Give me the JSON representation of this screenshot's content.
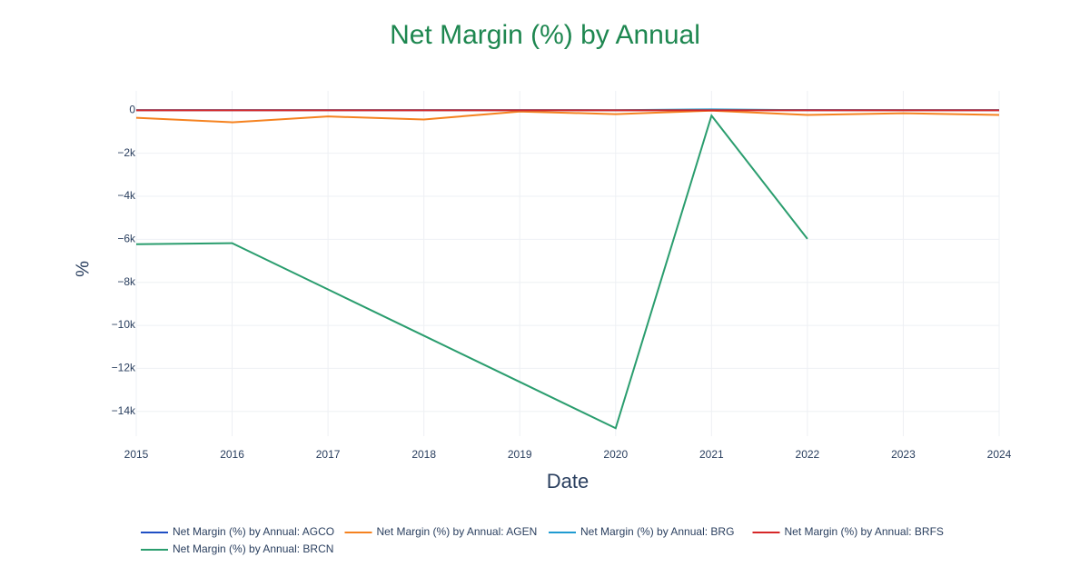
{
  "chart_data": {
    "type": "line",
    "title": "Net Margin (%) by Annual",
    "x_label": "Date",
    "y_label": "%",
    "x": [
      2015,
      2016,
      2017,
      2018,
      2019,
      2020,
      2021,
      2022,
      2023,
      2024
    ],
    "xlim": [
      2015,
      2024
    ],
    "xticks": [
      2015,
      2016,
      2017,
      2018,
      2019,
      2020,
      2021,
      2022,
      2023,
      2024
    ],
    "ylim": [
      -15150,
      900
    ],
    "yticks": [
      {
        "value": 0,
        "label": "0"
      },
      {
        "value": -2000,
        "label": "−2k"
      },
      {
        "value": -4000,
        "label": "−4k"
      },
      {
        "value": -6000,
        "label": "−6k"
      },
      {
        "value": -8000,
        "label": "−8k"
      },
      {
        "value": -10000,
        "label": "−10k"
      },
      {
        "value": -12000,
        "label": "−12k"
      },
      {
        "value": -14000,
        "label": "−14k"
      }
    ],
    "grid": true,
    "series": [
      {
        "name": "Net Margin (%) by Annual: AGCO",
        "color": "#1f4fc4",
        "values": [
          4,
          3,
          5,
          5,
          5,
          -1,
          7,
          6,
          5,
          5
        ]
      },
      {
        "name": "Net Margin (%) by Annual: AGEN",
        "color": "#f5821f",
        "values": [
          -350,
          -560,
          -290,
          -430,
          -60,
          -180,
          -20,
          -220,
          -140,
          -220
        ]
      },
      {
        "name": "Net Margin (%) by Annual: BRG",
        "color": "#1f9bd1",
        "values": [
          0,
          0,
          0,
          0,
          0,
          0,
          40,
          0,
          0,
          0
        ]
      },
      {
        "name": "Net Margin (%) by Annual: BRFS",
        "color": "#d62728",
        "values": [
          -2,
          -3,
          -2,
          -4,
          -2,
          -3,
          -1,
          -2,
          -3,
          -2
        ]
      },
      {
        "name": "Net Margin (%) by Annual: BRCN",
        "color": "#2a9d6e",
        "values": [
          -6230,
          -6180,
          -8330,
          -10480,
          -12630,
          -14780,
          -250,
          -5980,
          null,
          null
        ]
      }
    ]
  }
}
